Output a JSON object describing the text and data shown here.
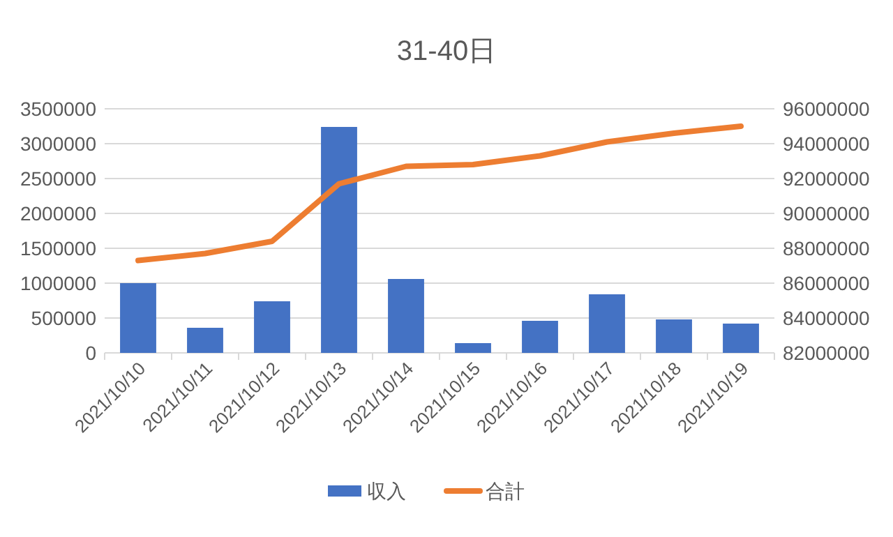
{
  "chart_data": {
    "type": "bar",
    "title": "31-40日",
    "categories": [
      "2021/10/10",
      "2021/10/11",
      "2021/10/12",
      "2021/10/13",
      "2021/10/14",
      "2021/10/15",
      "2021/10/16",
      "2021/10/17",
      "2021/10/18",
      "2021/10/19"
    ],
    "series": [
      {
        "name": "収入",
        "color": "#4472c4",
        "values": [
          1000000,
          360000,
          740000,
          3240000,
          1060000,
          140000,
          460000,
          840000,
          480000,
          420000
        ]
      },
      {
        "name": "合計",
        "type": "line",
        "axis": "y2",
        "color": "#ed7d31",
        "values": [
          87300000,
          87700000,
          88400000,
          91700000,
          92700000,
          92800000,
          93300000,
          94100000,
          94600000,
          95000000
        ]
      }
    ],
    "ylim": [
      0,
      3500000
    ],
    "yticks": [
      0,
      500000,
      1000000,
      1500000,
      2000000,
      2500000,
      3000000,
      3500000
    ],
    "y2lim": [
      82000000,
      96000000
    ],
    "y2ticks": [
      82000000,
      84000000,
      86000000,
      88000000,
      90000000,
      92000000,
      94000000,
      96000000
    ],
    "grid": "y",
    "legend": "bottom",
    "marker": "none",
    "line_style": "solid"
  }
}
